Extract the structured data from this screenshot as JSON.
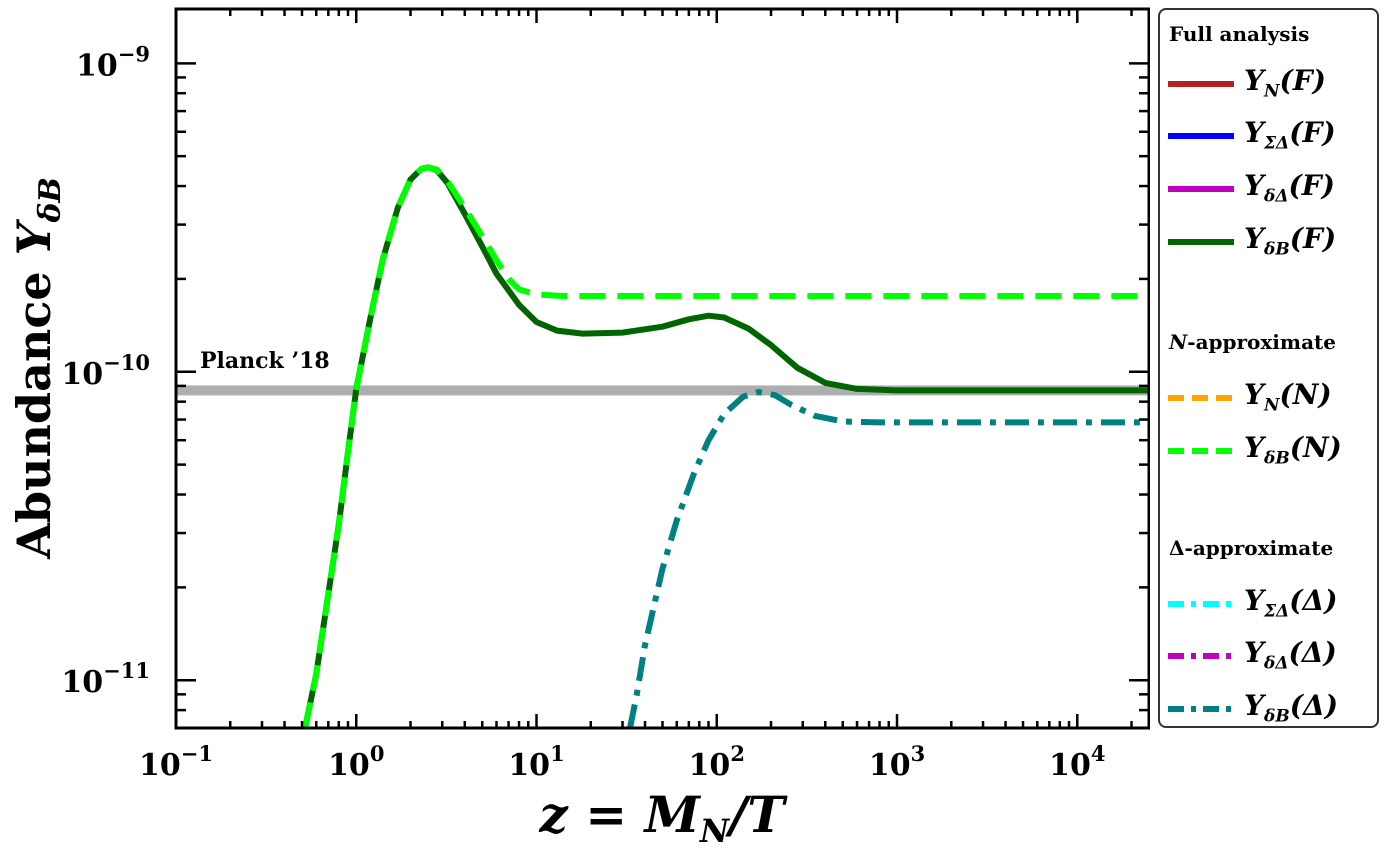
{
  "chart_data": {
    "type": "line",
    "xscale": "log",
    "yscale": "log",
    "xlim": [
      0.1,
      25000
    ],
    "ylim": [
      7e-12,
      1.5e-09
    ],
    "xlabel": "z = M_N/T",
    "ylabel": "Abundance Y_δB",
    "x_ticks": [
      {
        "value": 0.1,
        "base": "10",
        "exp": "−1"
      },
      {
        "value": 1,
        "base": "10",
        "exp": "0"
      },
      {
        "value": 10,
        "base": "10",
        "exp": "1"
      },
      {
        "value": 100,
        "base": "10",
        "exp": "2"
      },
      {
        "value": 1000,
        "base": "10",
        "exp": "3"
      },
      {
        "value": 10000,
        "base": "10",
        "exp": "4"
      }
    ],
    "y_ticks": [
      {
        "value": 1e-11,
        "base": "10",
        "exp": "−11"
      },
      {
        "value": 1e-10,
        "base": "10",
        "exp": "−10"
      },
      {
        "value": 1e-09,
        "base": "10",
        "exp": "−9"
      }
    ],
    "reference_band": {
      "label": "Planck ’18",
      "value": 8.7e-11,
      "color": "#a0a0a0"
    },
    "series": [
      {
        "name": "Y_δB(F)",
        "color": "#006400",
        "style": "solid",
        "points": [
          [
            0.52,
            7e-12
          ],
          [
            0.6,
            1.05e-11
          ],
          [
            0.7,
            1.9e-11
          ],
          [
            0.8,
            3.2e-11
          ],
          [
            0.9,
            5.5e-11
          ],
          [
            1.0,
            8.8e-11
          ],
          [
            1.2,
            1.5e-10
          ],
          [
            1.4,
            2.3e-10
          ],
          [
            1.7,
            3.4e-10
          ],
          [
            2.0,
            4.2e-10
          ],
          [
            2.3,
            4.55e-10
          ],
          [
            2.5,
            4.6e-10
          ],
          [
            2.8,
            4.5e-10
          ],
          [
            3.2,
            4.1e-10
          ],
          [
            4,
            3.25e-10
          ],
          [
            5,
            2.55e-10
          ],
          [
            6,
            2.08e-10
          ],
          [
            8,
            1.65e-10
          ],
          [
            10,
            1.45e-10
          ],
          [
            13,
            1.36e-10
          ],
          [
            18,
            1.33e-10
          ],
          [
            30,
            1.34e-10
          ],
          [
            50,
            1.4e-10
          ],
          [
            70,
            1.48e-10
          ],
          [
            90,
            1.52e-10
          ],
          [
            110,
            1.5e-10
          ],
          [
            150,
            1.38e-10
          ],
          [
            200,
            1.22e-10
          ],
          [
            280,
            1.03e-10
          ],
          [
            400,
            9.2e-11
          ],
          [
            600,
            8.8e-11
          ],
          [
            1000,
            8.7e-11
          ],
          [
            25000,
            8.7e-11
          ]
        ]
      },
      {
        "name": "Y_δB(N)",
        "color": "#00ff00",
        "style": "dashed",
        "points": [
          [
            0.52,
            7e-12
          ],
          [
            0.6,
            1.05e-11
          ],
          [
            0.7,
            1.9e-11
          ],
          [
            0.8,
            3.2e-11
          ],
          [
            0.9,
            5.5e-11
          ],
          [
            1.0,
            8.8e-11
          ],
          [
            1.2,
            1.5e-10
          ],
          [
            1.4,
            2.3e-10
          ],
          [
            1.7,
            3.4e-10
          ],
          [
            2.0,
            4.2e-10
          ],
          [
            2.3,
            4.55e-10
          ],
          [
            2.5,
            4.6e-10
          ],
          [
            2.8,
            4.52e-10
          ],
          [
            3.2,
            4.15e-10
          ],
          [
            4,
            3.4e-10
          ],
          [
            5,
            2.75e-10
          ],
          [
            6,
            2.3e-10
          ],
          [
            7,
            2e-10
          ],
          [
            8,
            1.85e-10
          ],
          [
            10,
            1.78e-10
          ],
          [
            14,
            1.76e-10
          ],
          [
            20,
            1.76e-10
          ],
          [
            25000,
            1.76e-10
          ]
        ]
      },
      {
        "name": "Y_δB(Δ)",
        "color": "#008080",
        "style": "dashdot",
        "points": [
          [
            33,
            7e-12
          ],
          [
            36,
            9e-12
          ],
          [
            40,
            1.3e-11
          ],
          [
            50,
            2.3e-11
          ],
          [
            60,
            3.3e-11
          ],
          [
            75,
            4.7e-11
          ],
          [
            90,
            6e-11
          ],
          [
            110,
            7.3e-11
          ],
          [
            140,
            8.3e-11
          ],
          [
            170,
            8.6e-11
          ],
          [
            210,
            8.4e-11
          ],
          [
            260,
            7.8e-11
          ],
          [
            350,
            7.2e-11
          ],
          [
            500,
            6.9e-11
          ],
          [
            800,
            6.85e-11
          ],
          [
            25000,
            6.85e-11
          ]
        ]
      }
    ],
    "legend": {
      "position": "right",
      "groups": [
        {
          "heading": "Full analysis",
          "entries": [
            {
              "label": "Y",
              "sub": "N",
              "arg": "(F)",
              "color": "#b22222",
              "style": "solid"
            },
            {
              "label": "Y",
              "sub": "ΣΔ",
              "arg": "(F)",
              "color": "#0000ff",
              "style": "solid"
            },
            {
              "label": "Y",
              "sub": "δΔ",
              "arg": "(F)",
              "color": "#c000c0",
              "style": "solid"
            },
            {
              "label": "Y",
              "sub": "δB",
              "arg": "(F)",
              "color": "#006400",
              "style": "solid"
            }
          ]
        },
        {
          "heading_italic": "N",
          "heading": "-approximate",
          "entries": [
            {
              "label": "Y",
              "sub": "N",
              "arg": "(N)",
              "color": "#ffa500",
              "style": "dashed"
            },
            {
              "label": "Y",
              "sub": "δB",
              "arg": "(N)",
              "color": "#00ff00",
              "style": "dashed"
            }
          ]
        },
        {
          "heading": "Δ-approximate",
          "entries": [
            {
              "label": "Y",
              "sub": "ΣΔ",
              "arg": "(Δ)",
              "color": "#00ffff",
              "style": "dashdot"
            },
            {
              "label": "Y",
              "sub": "δΔ",
              "arg": "(Δ)",
              "color": "#c000c0",
              "style": "dashdot"
            },
            {
              "label": "Y",
              "sub": "δB",
              "arg": "(Δ)",
              "color": "#008080",
              "style": "dashdot"
            }
          ]
        }
      ]
    }
  }
}
